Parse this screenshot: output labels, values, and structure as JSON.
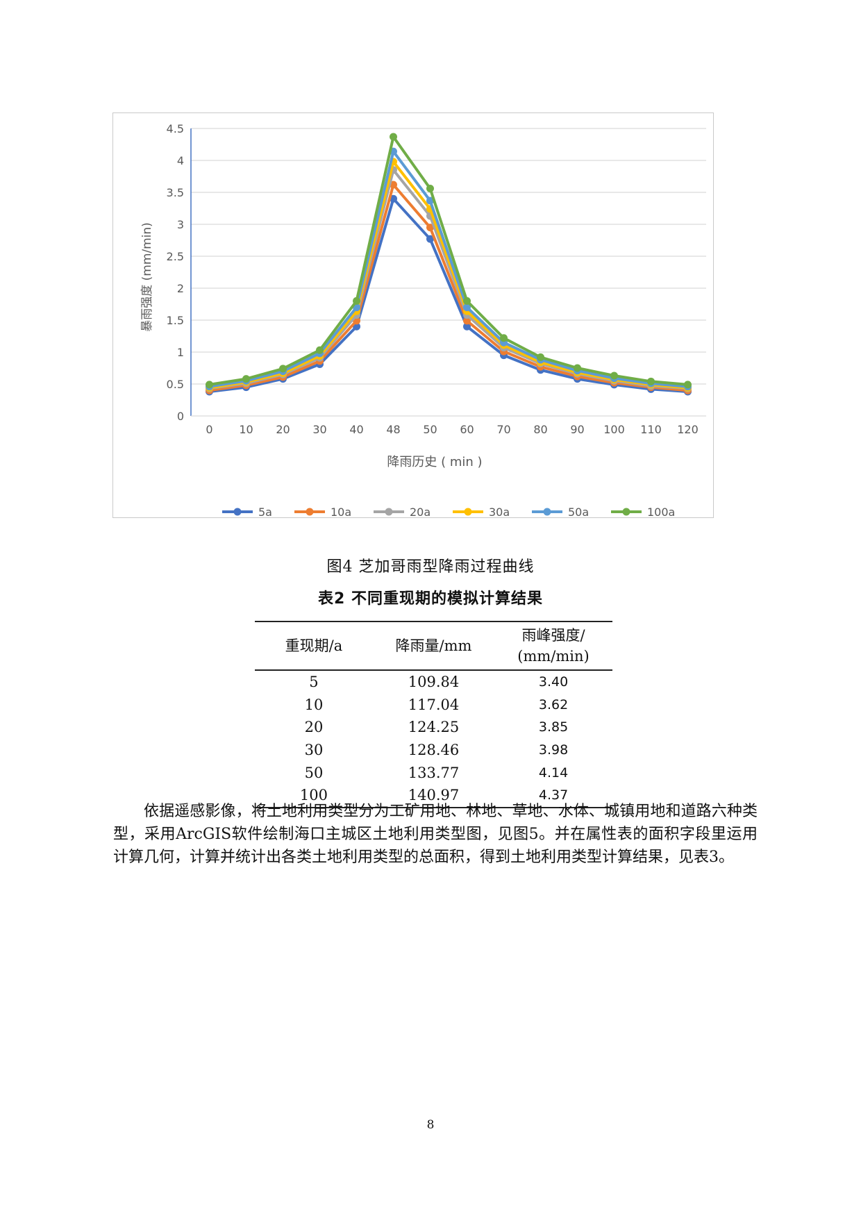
{
  "chart_data": {
    "type": "line",
    "x": [
      "0",
      "10",
      "20",
      "30",
      "40",
      "48",
      "50",
      "60",
      "70",
      "80",
      "90",
      "100",
      "110",
      "120"
    ],
    "series": [
      {
        "name": "5a",
        "color": "#4472C4",
        "values": [
          0.38,
          0.45,
          0.58,
          0.81,
          1.4,
          3.4,
          2.77,
          1.4,
          0.95,
          0.72,
          0.58,
          0.49,
          0.42,
          0.38
        ]
      },
      {
        "name": "10a",
        "color": "#ED7D31",
        "values": [
          0.4,
          0.48,
          0.61,
          0.86,
          1.49,
          3.62,
          2.95,
          1.49,
          1.01,
          0.77,
          0.62,
          0.52,
          0.45,
          0.4
        ]
      },
      {
        "name": "20a",
        "color": "#A5A5A5",
        "values": [
          0.43,
          0.51,
          0.65,
          0.91,
          1.58,
          3.85,
          3.13,
          1.58,
          1.07,
          0.82,
          0.66,
          0.55,
          0.47,
          0.43
        ]
      },
      {
        "name": "30a",
        "color": "#FFC000",
        "values": [
          0.44,
          0.53,
          0.67,
          0.94,
          1.64,
          3.98,
          3.24,
          1.64,
          1.11,
          0.84,
          0.68,
          0.57,
          0.49,
          0.44
        ]
      },
      {
        "name": "50a",
        "color": "#5B9BD5",
        "values": [
          0.46,
          0.55,
          0.7,
          0.98,
          1.7,
          4.14,
          3.37,
          1.7,
          1.15,
          0.88,
          0.71,
          0.59,
          0.51,
          0.46
        ]
      },
      {
        "name": "100a",
        "color": "#70AD47",
        "values": [
          0.49,
          0.58,
          0.74,
          1.03,
          1.8,
          4.37,
          3.56,
          1.8,
          1.22,
          0.92,
          0.75,
          0.63,
          0.54,
          0.49
        ]
      }
    ],
    "y_ticks": [
      "0",
      "0.5",
      "1",
      "1.5",
      "2",
      "2.5",
      "3",
      "3.5",
      "4",
      "4.5"
    ],
    "ylim": [
      0,
      4.5
    ],
    "ylabel": "暴雨强度 (mm/min)",
    "xlabel": "降雨历史 ( min )",
    "legend": "bottom",
    "grid": true
  },
  "figure_caption": "图4 芝加哥雨型降雨过程曲线",
  "table": {
    "caption": "表2 不同重现期的模拟计算结果",
    "headers": [
      "重现期/a",
      "降雨量/mm",
      "雨峰强度/",
      "(mm/min)"
    ],
    "rows": [
      [
        "5",
        "109.84",
        "3.40"
      ],
      [
        "10",
        "117.04",
        "3.62"
      ],
      [
        "20",
        "124.25",
        "3.85"
      ],
      [
        "30",
        "128.46",
        "3.98"
      ],
      [
        "50",
        "133.77",
        "4.14"
      ],
      [
        "100",
        "140.97",
        "4.37"
      ]
    ]
  },
  "paragraph": "依据遥感影像，将土地利用类型分为工矿用地、林地、草地、水体、城镇用地和道路六种类型，采用ArcGIS软件绘制海口主城区土地利用类型图，见图5。并在属性表的面积字段里运用计算几何，计算并统计出各类土地利用类型的总面积，得到土地利用类型计算结果，见表3。",
  "page_number": "8"
}
